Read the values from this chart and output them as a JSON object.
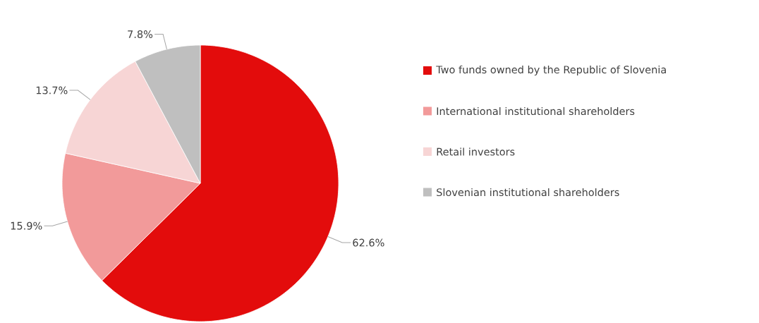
{
  "chart_data": {
    "type": "pie",
    "categories": [
      "Two funds owned by the Republic of Slovenia",
      "International institutional shareholders",
      "Retail investors",
      "Slovenian institutional shareholders"
    ],
    "values": [
      62.6,
      15.9,
      13.7,
      7.8
    ],
    "value_labels": [
      "62.6%",
      "15.9%",
      "13.7%",
      "7.8%"
    ],
    "colors": [
      "#e30c0c",
      "#f29a9a",
      "#f7d5d5",
      "#bfbfbf"
    ],
    "legend": "right"
  }
}
